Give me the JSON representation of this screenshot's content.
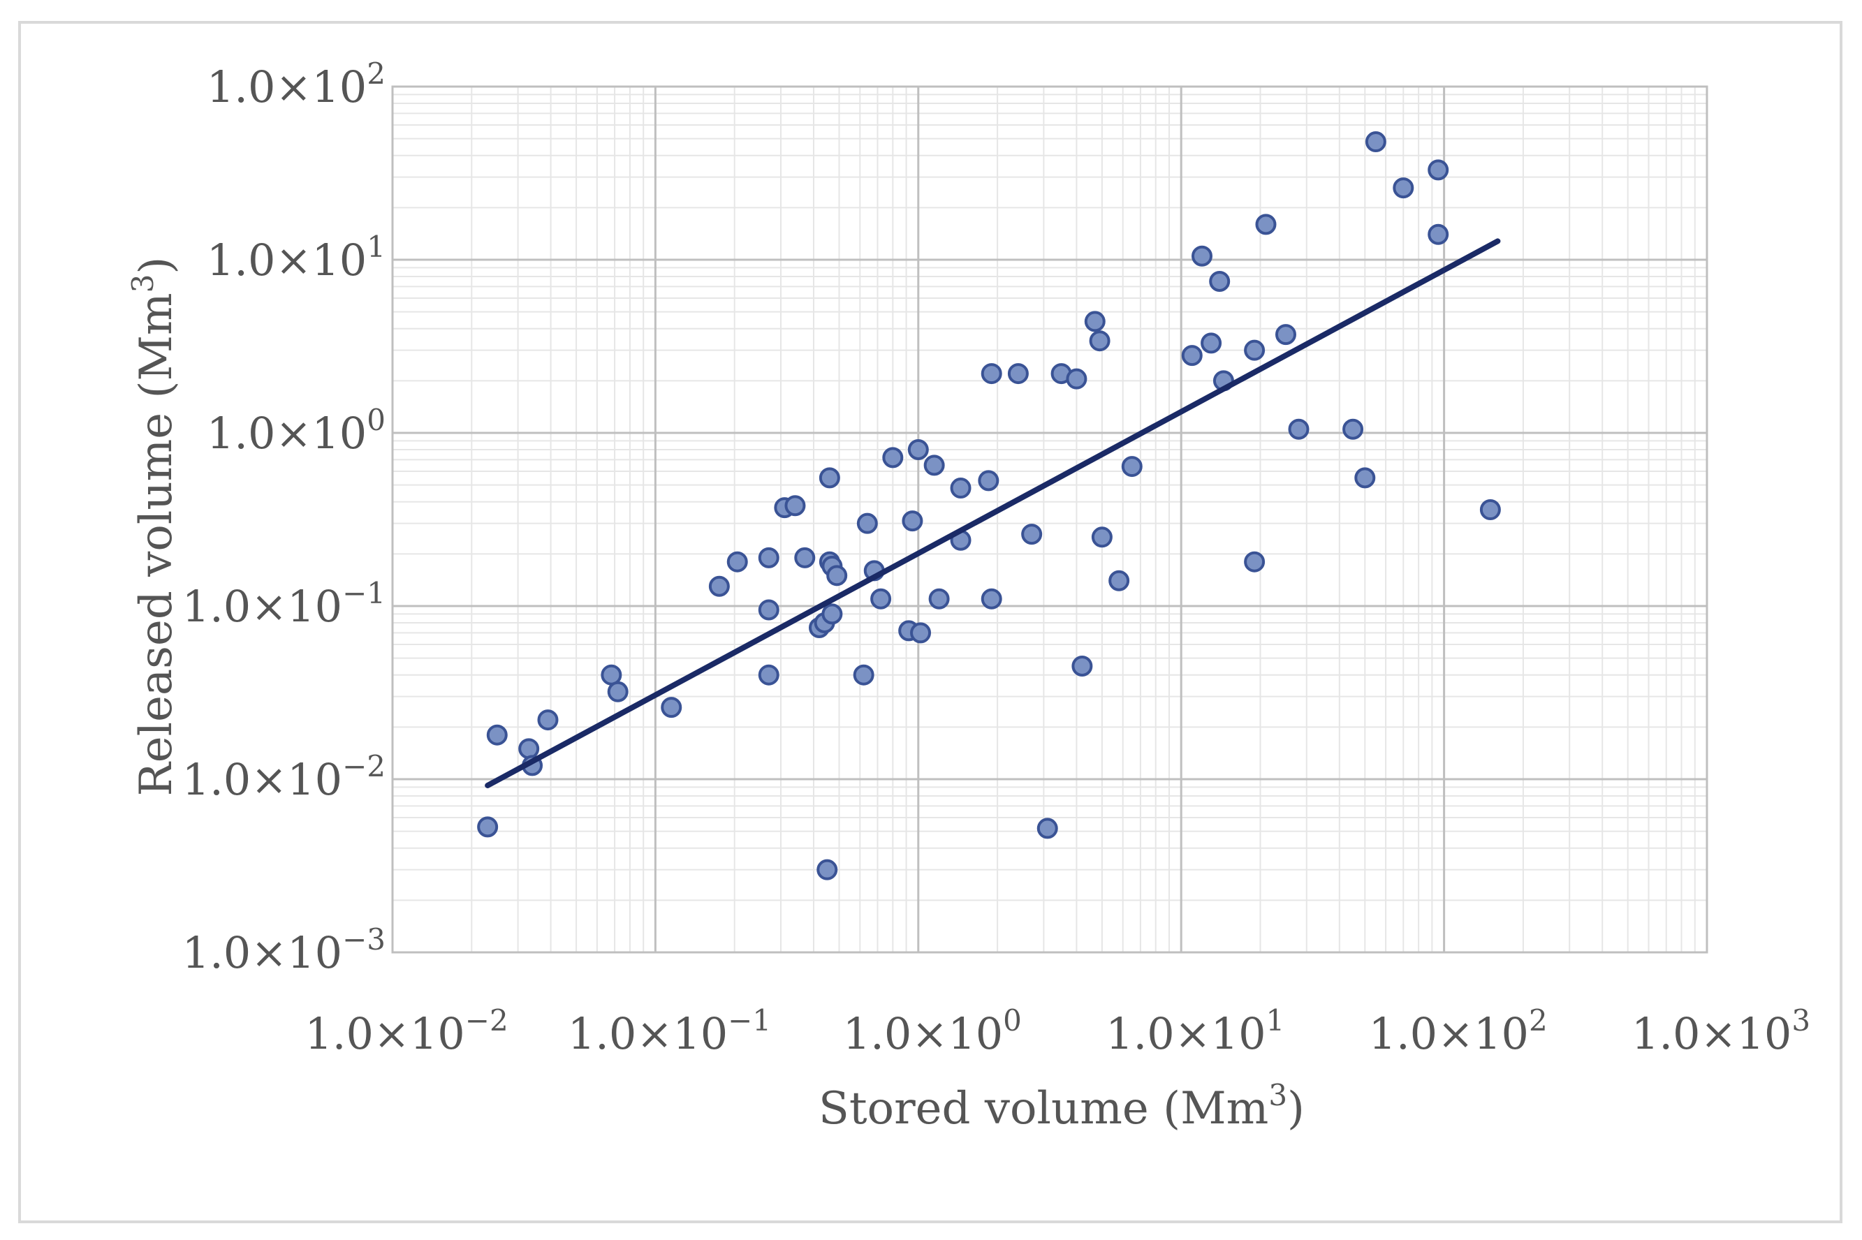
{
  "chart_data": {
    "type": "scatter",
    "xlabel": "Stored volume (Mm",
    "xlabel_sup": "3",
    "xlabel_end": ")",
    "ylabel": "Released volume (Mm",
    "ylabel_sup": "3",
    "ylabel_end": ")",
    "x_scale": "log",
    "y_scale": "log",
    "xlim": [
      0.01,
      1000
    ],
    "ylim": [
      0.001,
      100
    ],
    "grid": true,
    "x_ticks": [
      {
        "value": 0.01,
        "base": "1.0×10",
        "exp": "−2"
      },
      {
        "value": 0.1,
        "base": "1.0×10",
        "exp": "−1"
      },
      {
        "value": 1,
        "base": "1.0×10",
        "exp": "0"
      },
      {
        "value": 10,
        "base": "1.0×10",
        "exp": "1"
      },
      {
        "value": 100,
        "base": "1.0×10",
        "exp": "2"
      },
      {
        "value": 1000,
        "base": "1.0×10",
        "exp": "3"
      }
    ],
    "y_ticks": [
      {
        "value": 0.001,
        "base": "1.0×10",
        "exp": "−3"
      },
      {
        "value": 0.01,
        "base": "1.0×10",
        "exp": "−2"
      },
      {
        "value": 0.1,
        "base": "1.0×10",
        "exp": "−1"
      },
      {
        "value": 1,
        "base": "1.0×10",
        "exp": "0"
      },
      {
        "value": 10,
        "base": "1.0×10",
        "exp": "1"
      },
      {
        "value": 100,
        "base": "1.0×10",
        "exp": "2"
      }
    ],
    "points": [
      [
        0.023,
        0.0053
      ],
      [
        0.025,
        0.018
      ],
      [
        0.033,
        0.015
      ],
      [
        0.034,
        0.012
      ],
      [
        0.039,
        0.022
      ],
      [
        0.068,
        0.04
      ],
      [
        0.072,
        0.032
      ],
      [
        0.115,
        0.026
      ],
      [
        0.175,
        0.13
      ],
      [
        0.205,
        0.18
      ],
      [
        0.27,
        0.04
      ],
      [
        0.27,
        0.095
      ],
      [
        0.27,
        0.19
      ],
      [
        0.31,
        0.37
      ],
      [
        0.34,
        0.38
      ],
      [
        0.37,
        0.19
      ],
      [
        0.42,
        0.075
      ],
      [
        0.44,
        0.08
      ],
      [
        0.46,
        0.18
      ],
      [
        0.47,
        0.17
      ],
      [
        0.46,
        0.55
      ],
      [
        0.47,
        0.09
      ],
      [
        0.49,
        0.15
      ],
      [
        0.45,
        0.003
      ],
      [
        0.62,
        0.04
      ],
      [
        0.64,
        0.3
      ],
      [
        0.68,
        0.16
      ],
      [
        0.72,
        0.11
      ],
      [
        0.8,
        0.72
      ],
      [
        0.92,
        0.072
      ],
      [
        0.95,
        0.31
      ],
      [
        1.0,
        0.8
      ],
      [
        1.02,
        0.07
      ],
      [
        1.15,
        0.65
      ],
      [
        1.2,
        0.11
      ],
      [
        1.45,
        0.48
      ],
      [
        1.45,
        0.24
      ],
      [
        1.85,
        0.53
      ],
      [
        1.9,
        0.11
      ],
      [
        1.9,
        2.2
      ],
      [
        2.4,
        2.2
      ],
      [
        2.7,
        0.26
      ],
      [
        3.1,
        0.0052
      ],
      [
        3.5,
        2.2
      ],
      [
        4.0,
        2.05
      ],
      [
        4.2,
        0.045
      ],
      [
        4.7,
        4.4
      ],
      [
        4.9,
        3.4
      ],
      [
        5.0,
        0.25
      ],
      [
        5.8,
        0.14
      ],
      [
        6.5,
        0.64
      ],
      [
        11.0,
        2.8
      ],
      [
        12.0,
        10.5
      ],
      [
        13.0,
        3.3
      ],
      [
        14.0,
        7.5
      ],
      [
        14.5,
        2.0
      ],
      [
        19.0,
        3.0
      ],
      [
        19.0,
        0.18
      ],
      [
        21.0,
        16.0
      ],
      [
        25.0,
        3.7
      ],
      [
        28.0,
        1.05
      ],
      [
        45.0,
        1.05
      ],
      [
        50.0,
        0.55
      ],
      [
        55.0,
        48.0
      ],
      [
        70.0,
        26.0
      ],
      [
        95.0,
        33.0
      ],
      [
        95.0,
        14.0
      ],
      [
        150.0,
        0.36
      ]
    ],
    "trendline": {
      "x": [
        0.023,
        160
      ],
      "y": [
        0.0092,
        12.8
      ]
    },
    "colors": {
      "point_fill": "#7b92c4",
      "point_stroke": "#3a5395",
      "trendline": "#1a2a66",
      "grid_major": "#bfbfbf",
      "grid_minor": "#e6e6e6",
      "frame": "#d9d9d9"
    }
  }
}
